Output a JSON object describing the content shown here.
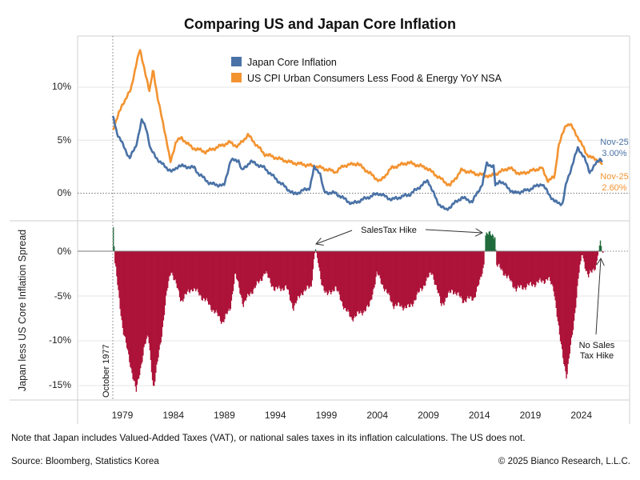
{
  "chart_data": [
    {
      "type": "line",
      "title": "Comparing US and Japan Core Inflation",
      "legend_placement": "top-center",
      "ylim": [
        -2,
        14
      ],
      "yticks": [
        "0%",
        "5%",
        "10%"
      ],
      "grid": true,
      "series": [
        {
          "name": "Japan Core Inflation",
          "color": "#4a72a6",
          "end_label": {
            "date": "Nov-25",
            "value": "3.00%"
          },
          "points": [
            [
              1977.75,
              7.3
            ],
            [
              1978.2,
              5.6
            ],
            [
              1979.4,
              3.3
            ],
            [
              1980.0,
              4.4
            ],
            [
              1980.6,
              6.9
            ],
            [
              1981.05,
              6.1
            ],
            [
              1981.45,
              4.1
            ],
            [
              1982.4,
              2.9
            ],
            [
              1983.55,
              2.0
            ],
            [
              1984.2,
              2.6
            ],
            [
              1985.75,
              2.4
            ],
            [
              1986.1,
              1.9
            ],
            [
              1987.3,
              0.9
            ],
            [
              1988.65,
              0.7
            ],
            [
              1989.3,
              3.1
            ],
            [
              1990.1,
              3.1
            ],
            [
              1990.4,
              2.1
            ],
            [
              1991.25,
              3.0
            ],
            [
              1992.6,
              2.4
            ],
            [
              1993.9,
              1.2
            ],
            [
              1995.5,
              -0.1
            ],
            [
              1997.05,
              0.5
            ],
            [
              1997.5,
              2.4
            ],
            [
              1998.05,
              2.0
            ],
            [
              1998.45,
              0.1
            ],
            [
              1999.6,
              0.0
            ],
            [
              2001.2,
              -1.0
            ],
            [
              2003.8,
              0.0
            ],
            [
              2005.1,
              -0.6
            ],
            [
              2006.9,
              -0.1
            ],
            [
              2008.65,
              1.2
            ],
            [
              2009.6,
              -0.9
            ],
            [
              2010.4,
              -1.6
            ],
            [
              2011.95,
              -0.4
            ],
            [
              2013.0,
              -0.8
            ],
            [
              2014.0,
              0.9
            ],
            [
              2014.4,
              2.8
            ],
            [
              2015.1,
              2.5
            ],
            [
              2015.25,
              0.7
            ],
            [
              2015.7,
              1.2
            ],
            [
              2017.1,
              0.0
            ],
            [
              2018.45,
              0.3
            ],
            [
              2019.8,
              0.9
            ],
            [
              2021.05,
              -0.8
            ],
            [
              2021.85,
              -1.0
            ],
            [
              2022.2,
              0.9
            ],
            [
              2023.35,
              4.3
            ],
            [
              2023.95,
              3.4
            ],
            [
              2024.5,
              2.0
            ],
            [
              2025.55,
              3.3
            ],
            [
              2025.83,
              3.0
            ]
          ]
        },
        {
          "name": "US CPI Urban Consumers Less Food & Energy YoY NSA",
          "color": "#f39330",
          "end_label": {
            "date": "Nov-25",
            "value": "2.60%"
          },
          "points": [
            [
              1977.75,
              6.0
            ],
            [
              1978.7,
              8.4
            ],
            [
              1979.5,
              9.7
            ],
            [
              1980.0,
              12.0
            ],
            [
              1980.4,
              13.5
            ],
            [
              1980.8,
              12.0
            ],
            [
              1981.35,
              9.5
            ],
            [
              1981.7,
              11.8
            ],
            [
              1982.15,
              8.9
            ],
            [
              1982.8,
              6.1
            ],
            [
              1983.4,
              2.9
            ],
            [
              1983.95,
              4.9
            ],
            [
              1984.5,
              5.2
            ],
            [
              1985.5,
              4.3
            ],
            [
              1986.85,
              3.9
            ],
            [
              1989.2,
              4.8
            ],
            [
              1990.0,
              4.4
            ],
            [
              1991.0,
              5.5
            ],
            [
              1992.6,
              3.7
            ],
            [
              1995.2,
              2.9
            ],
            [
              1997.8,
              2.5
            ],
            [
              1999.6,
              2.0
            ],
            [
              2000.4,
              2.6
            ],
            [
              2001.75,
              2.8
            ],
            [
              2003.95,
              1.1
            ],
            [
              2005.1,
              2.4
            ],
            [
              2006.7,
              2.9
            ],
            [
              2008.5,
              2.4
            ],
            [
              2010.8,
              0.7
            ],
            [
              2011.95,
              2.2
            ],
            [
              2013.5,
              1.8
            ],
            [
              2014.8,
              1.6
            ],
            [
              2016.6,
              2.4
            ],
            [
              2017.7,
              1.8
            ],
            [
              2019.8,
              2.4
            ],
            [
              2020.4,
              1.2
            ],
            [
              2021.05,
              1.5
            ],
            [
              2021.45,
              4.5
            ],
            [
              2022.2,
              6.5
            ],
            [
              2022.6,
              6.5
            ],
            [
              2023.4,
              5.2
            ],
            [
              2024.2,
              3.7
            ],
            [
              2024.75,
              3.3
            ],
            [
              2025.4,
              3.1
            ],
            [
              2025.83,
              2.6
            ]
          ]
        }
      ]
    },
    {
      "type": "bar",
      "ylabel": "Japan less US Core Inflation Spread",
      "ylim": [
        -16.5,
        3
      ],
      "yticks": [
        "0%",
        "-5%",
        "-10%",
        "-15%"
      ],
      "grid": true,
      "positive_color": "#1f6b3c",
      "negative_color": "#ad1238",
      "points": [
        [
          1977.75,
          2.7
        ],
        [
          1977.9,
          -1.2
        ],
        [
          1978.7,
          -8.8
        ],
        [
          1980.0,
          -15.7
        ],
        [
          1980.8,
          -10.6
        ],
        [
          1981.2,
          -9.5
        ],
        [
          1981.7,
          -15.5
        ],
        [
          1982.2,
          -11.5
        ],
        [
          1982.55,
          -8.8
        ],
        [
          1983.0,
          -4.6
        ],
        [
          1983.4,
          -2.0
        ],
        [
          1984.4,
          -5.5
        ],
        [
          1985.5,
          -4.1
        ],
        [
          1986.2,
          -4.8
        ],
        [
          1987.1,
          -5.9
        ],
        [
          1988.45,
          -7.9
        ],
        [
          1989.2,
          -6.5
        ],
        [
          1989.7,
          -2.5
        ],
        [
          1990.5,
          -5.9
        ],
        [
          1991.3,
          -4.5
        ],
        [
          1992.1,
          -3.4
        ],
        [
          1992.6,
          -2.3
        ],
        [
          1993.6,
          -4.3
        ],
        [
          1994.7,
          -4.0
        ],
        [
          1995.4,
          -6.3
        ],
        [
          1996.3,
          -4.5
        ],
        [
          1997.15,
          -4.0
        ],
        [
          1997.45,
          -0.5
        ],
        [
          1997.6,
          0.3
        ],
        [
          1998.1,
          -3.2
        ],
        [
          1998.7,
          -5.0
        ],
        [
          1999.5,
          -4.0
        ],
        [
          2000.5,
          -6.5
        ],
        [
          2001.1,
          -7.5
        ],
        [
          2002.1,
          -6.8
        ],
        [
          2002.85,
          -6.2
        ],
        [
          2003.6,
          -2.5
        ],
        [
          2005.2,
          -6.0
        ],
        [
          2006.8,
          -6.3
        ],
        [
          2009.0,
          -2.3
        ],
        [
          2009.9,
          -6.0
        ],
        [
          2011.0,
          -4.3
        ],
        [
          2012.05,
          -5.5
        ],
        [
          2013.1,
          -5.2
        ],
        [
          2013.7,
          -3.4
        ],
        [
          2014.1,
          -1.4
        ],
        [
          2014.25,
          1.9
        ],
        [
          2015.2,
          1.8
        ],
        [
          2015.3,
          -1.5
        ],
        [
          2016.0,
          -2.3
        ],
        [
          2017.25,
          -4.2
        ],
        [
          2018.6,
          -3.8
        ],
        [
          2020.4,
          -3.1
        ],
        [
          2020.95,
          -4.2
        ],
        [
          2021.5,
          -9.5
        ],
        [
          2022.2,
          -14.1
        ],
        [
          2022.9,
          -7.9
        ],
        [
          2023.4,
          -2.5
        ],
        [
          2023.7,
          -0.2
        ],
        [
          2024.3,
          -2.9
        ],
        [
          2025.1,
          -1.5
        ],
        [
          2025.5,
          1.2
        ],
        [
          2025.7,
          -0.3
        ],
        [
          2025.83,
          0.0
        ]
      ]
    }
  ],
  "xaxis": {
    "ticks": [
      1979,
      1984,
      1989,
      1994,
      1999,
      2004,
      2009,
      2014,
      2019,
      2024
    ]
  },
  "title": "Comparing US and Japan Core Inflation",
  "legend": {
    "japan": "Japan Core Inflation",
    "us": "US CPI Urban Consumers Less Food & Energy YoY NSA"
  },
  "end_labels": {
    "japan_date": "Nov-25",
    "japan_value": "3.00%",
    "us_date": "Nov-25",
    "us_value": "2.60%"
  },
  "annotations": {
    "start_marker": "October 1977",
    "sales_tax": "SalesTax Hike",
    "no_sales_tax_1": "No Sales",
    "no_sales_tax_2": "Tax Hike"
  },
  "top_yticks": [
    "10%",
    "5%",
    "0%"
  ],
  "bottom_yticks": [
    "0%",
    "-5%",
    "-10%",
    "-15%"
  ],
  "bottom_ylabel": "Japan less US Core Inflation Spread",
  "footer": {
    "note": "Note that Japan includes Valued-Added Taxes (VAT), or national sales taxes in its inflation calculations. The US does not.",
    "source": "Source: Bloomberg, Statistics Korea",
    "copyright": "© 2025 Bianco Research, L.L.C."
  }
}
